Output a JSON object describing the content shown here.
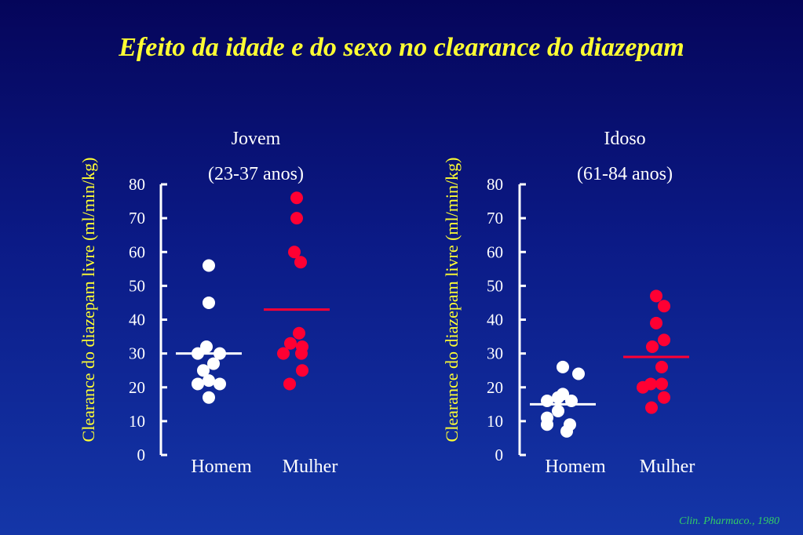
{
  "title": "Efeito da idade e do sexo no clearance do diazepam",
  "source": "Clin. Pharmaco., 1980",
  "colors": {
    "homem": "#ffffff",
    "mulher": "#ff0033",
    "title": "#ffff33",
    "source": "#33cc66"
  },
  "chart_data": [
    {
      "type": "scatter",
      "title": "Jovem",
      "subtitle": "(23-37 anos)",
      "ylabel": "Clearance do diazepam livre (ml/min/kg)",
      "ylim": [
        0,
        80
      ],
      "yticks": [
        0,
        10,
        20,
        30,
        40,
        50,
        60,
        70,
        80
      ],
      "categories": [
        "Homem",
        "Mulher"
      ],
      "series": [
        {
          "name": "Homem",
          "values": [
            56,
            45,
            32,
            30,
            30,
            27,
            25,
            22,
            21,
            21,
            17
          ],
          "mean": 30
        },
        {
          "name": "Mulher",
          "values": [
            76,
            70,
            60,
            57,
            36,
            33,
            32,
            30,
            30,
            25,
            21
          ],
          "mean": 43
        }
      ]
    },
    {
      "type": "scatter",
      "title": "Idoso",
      "subtitle": "(61-84 anos)",
      "ylabel": "Clearance do diazepam livre  (ml/min/kg)",
      "ylim": [
        0,
        80
      ],
      "yticks": [
        0,
        10,
        20,
        30,
        40,
        50,
        60,
        70,
        80
      ],
      "categories": [
        "Homem",
        "Mulher"
      ],
      "series": [
        {
          "name": "Homem",
          "values": [
            26,
            24,
            18,
            17,
            16,
            16,
            13,
            11,
            9,
            9,
            7
          ],
          "mean": 15
        },
        {
          "name": "Mulher",
          "values": [
            47,
            44,
            39,
            34,
            32,
            26,
            21,
            21,
            20,
            17,
            14
          ],
          "mean": 29
        }
      ]
    }
  ]
}
